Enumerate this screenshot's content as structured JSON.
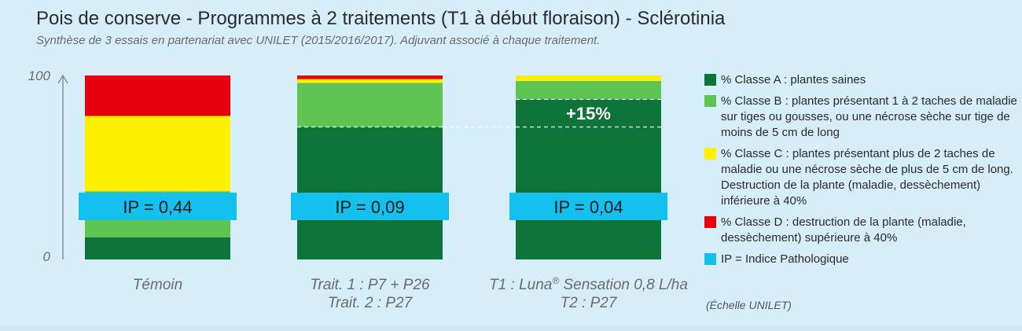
{
  "title": "Pois de conserve - Programmes à 2 traitements (T1 à début floraison) - Sclérotinia",
  "subtitle": "Synthèse de 3 essais en partenariat avec UNILET (2015/2016/2017). Adjuvant associé à chaque traitement.",
  "chart_data": {
    "type": "bar",
    "stacked": true,
    "ylim": [
      0,
      100
    ],
    "ytick_labels": [
      "0",
      "100"
    ],
    "categories": [
      {
        "lines": [
          "Témoin"
        ]
      },
      {
        "lines": [
          "Trait. 1 : P7 + P26",
          "Trait. 2 : P27"
        ]
      },
      {
        "lines": [
          "T1 : Luna® Sensation 0,8 L/ha",
          "T2 : P27"
        ]
      }
    ],
    "series": [
      {
        "name": "% Classe A : plantes saines",
        "color": "#0e7338",
        "values": [
          12,
          72,
          87
        ]
      },
      {
        "name": "% Classe B : plantes présentant 1 à 2 taches de maladie sur tiges ou gousses, ou une nécrose sèche sur tige de moins de 5 cm de long",
        "color": "#5ec452",
        "values": [
          25,
          24,
          10
        ]
      },
      {
        "name": "% Classe C : plantes présentant plus de 2 taches de maladie ou une nécrose sèche de plus de 5 cm de long. Destruction de la plante (maladie, dessèchement) inférieure à 40%",
        "color": "#ffef00",
        "values": [
          41,
          2,
          3
        ]
      },
      {
        "name": "% Classe D : destruction de la plante (maladie, dessèchement) supérieure à 40%",
        "color": "#e8000e",
        "values": [
          22,
          2,
          0
        ]
      }
    ],
    "ip_labels": [
      "IP = 0,44",
      "IP = 0,09",
      "IP = 0,04"
    ],
    "ip_color": "#14c1ee",
    "annotation": {
      "text": "+15%",
      "from_value": 72,
      "to_value": 87
    }
  },
  "legend": {
    "items": [
      {
        "text": "% Classe A : plantes saines",
        "color": "#0e7338"
      },
      {
        "text": "% Classe B : plantes présentant 1 à 2 taches de maladie sur tiges ou gousses, ou une nécrose sèche sur tige de moins de 5 cm de long",
        "color": "#5ec452"
      },
      {
        "text": "% Classe C : plantes présentant plus de 2 taches de maladie ou une nécrose sèche de plus de 5 cm de long. Destruction de la plante (maladie, dessèchement) inférieure à 40%",
        "color": "#ffef00"
      },
      {
        "text": "% Classe D : destruction de la plante (maladie, dessèchement) supérieure à 40%",
        "color": "#e8000e"
      },
      {
        "text": "IP = Indice Pathologique",
        "color": "#14c1ee"
      }
    ],
    "scale_note": "(Échelle UNILET)"
  }
}
